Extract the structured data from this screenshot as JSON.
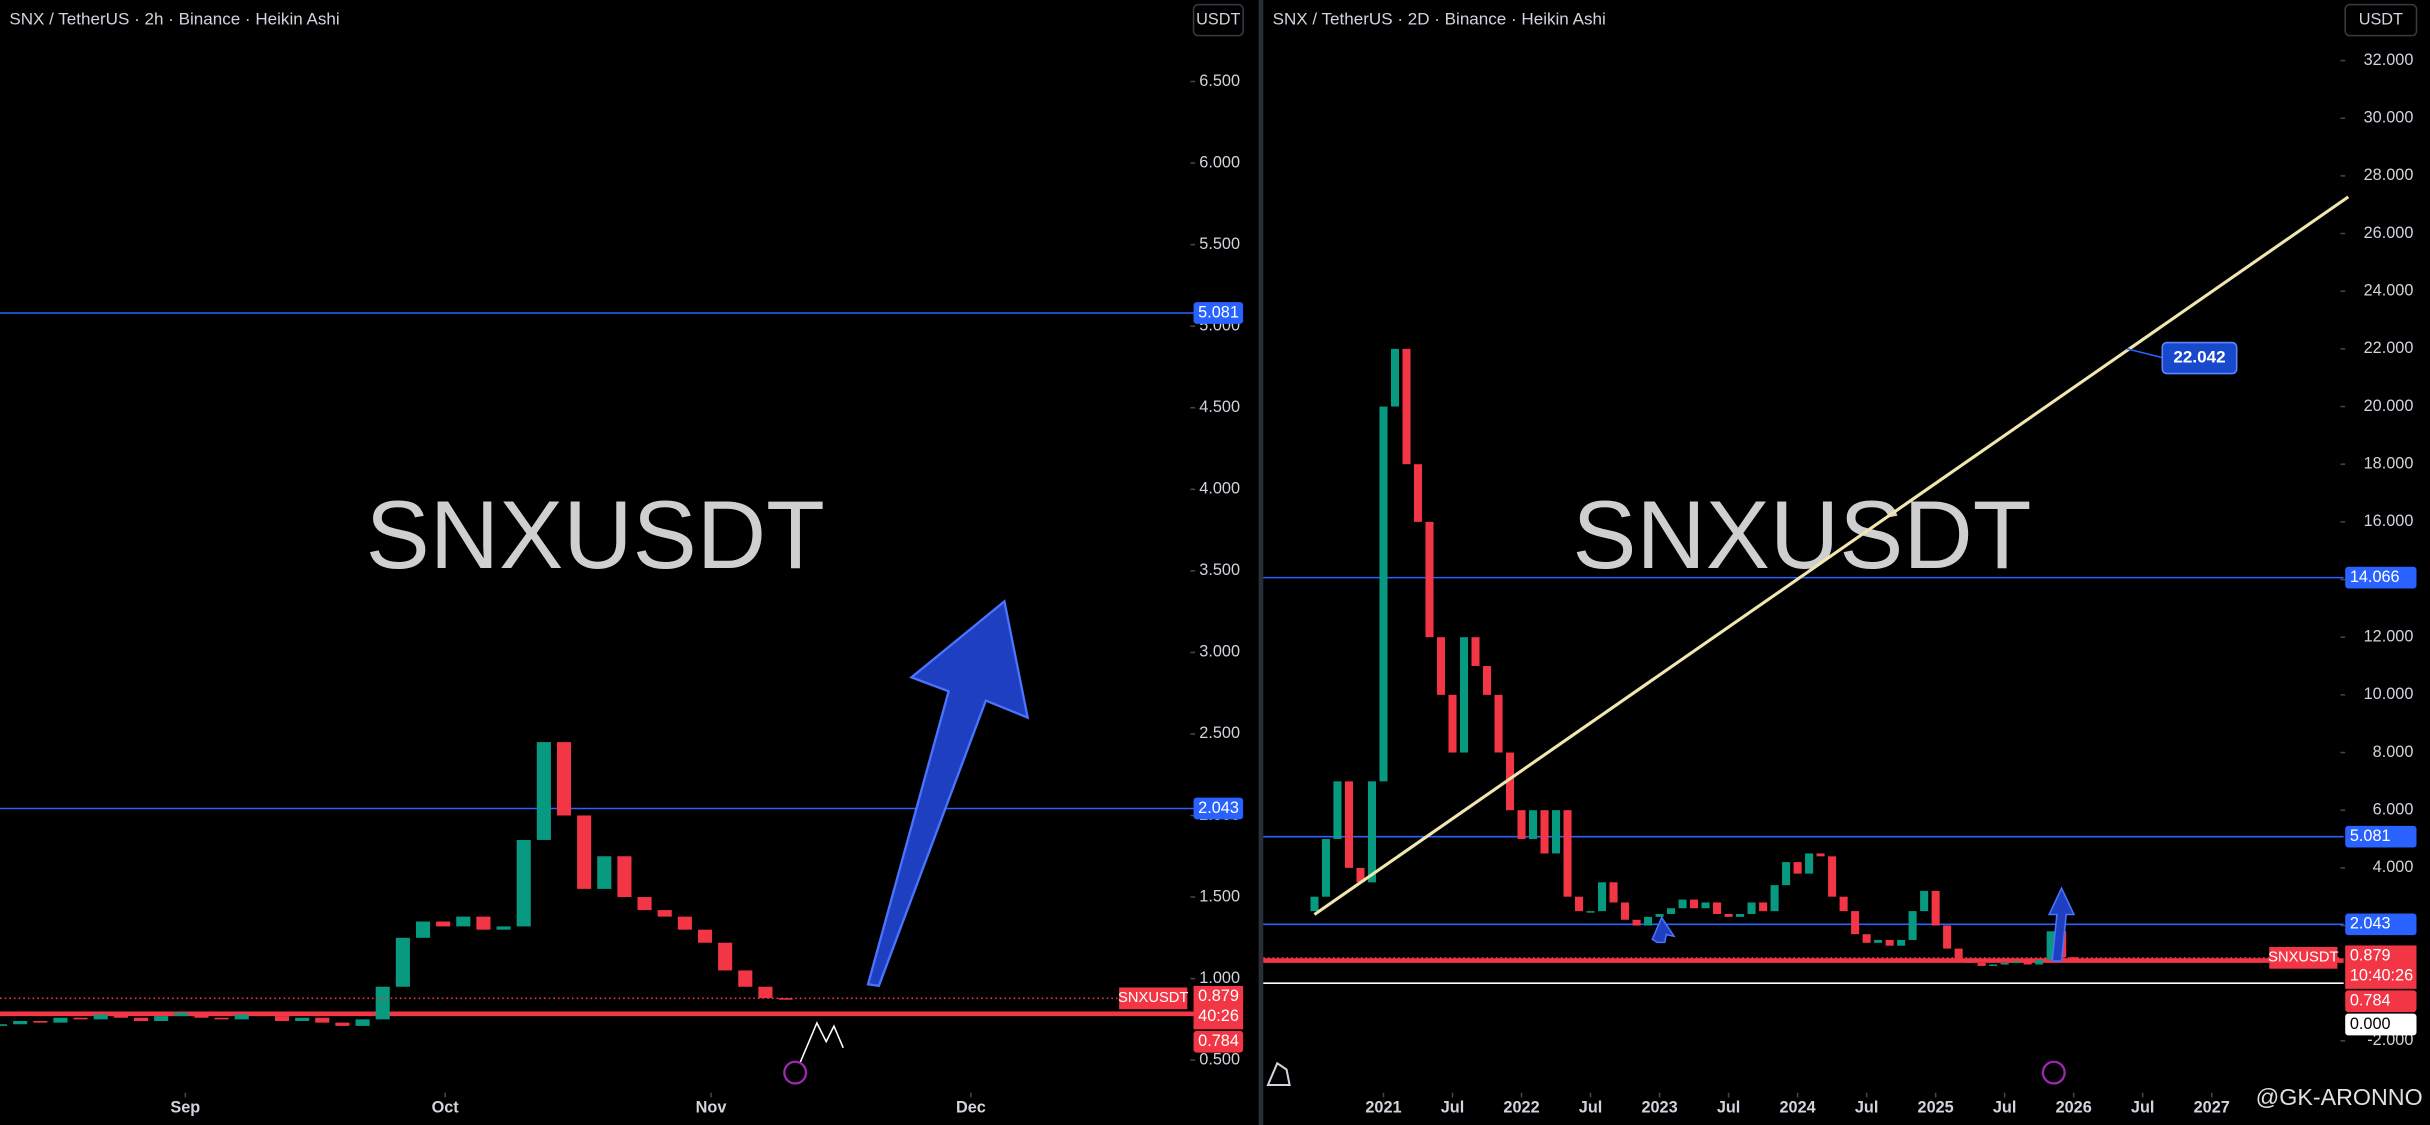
{
  "chart_data": [
    {
      "type": "candlestick",
      "title": "SNX / TetherUS · 2h · Binance · Heikin Ashi",
      "currency": "USDT",
      "watermark": "SNXUSDT",
      "colors": {
        "up": "#089981",
        "down": "#f23645"
      },
      "open": [
        0.71,
        0.72,
        0.74,
        0.73,
        0.76,
        0.75,
        0.78,
        0.76,
        0.74,
        0.77,
        0.79,
        0.76,
        0.75,
        0.78,
        0.77,
        0.74,
        0.76,
        0.73,
        0.71,
        0.75,
        0.95,
        1.25,
        1.35,
        1.32,
        1.38,
        1.3,
        1.32,
        1.85,
        2.45,
        2.0,
        1.55,
        1.75,
        1.5,
        1.42,
        1.38,
        1.3,
        1.22,
        1.05,
        0.95,
        0.88
      ],
      "close": [
        0.72,
        0.74,
        0.73,
        0.76,
        0.75,
        0.78,
        0.76,
        0.74,
        0.77,
        0.79,
        0.76,
        0.75,
        0.78,
        0.77,
        0.74,
        0.76,
        0.73,
        0.71,
        0.75,
        0.95,
        1.25,
        1.35,
        1.32,
        1.38,
        1.3,
        1.32,
        1.85,
        2.45,
        2.0,
        1.55,
        1.75,
        1.5,
        1.42,
        1.38,
        1.3,
        1.22,
        1.05,
        0.95,
        0.88,
        0.879
      ],
      "xlim": [
        0,
        59.1
      ],
      "xticks": [
        {
          "value": 9.2,
          "label": "Sep"
        },
        {
          "value": 22.1,
          "label": "Oct"
        },
        {
          "value": 35.3,
          "label": "Nov"
        },
        {
          "value": 48.2,
          "label": "Dec"
        }
      ],
      "ylim": [
        0.3,
        7.0
      ],
      "yticks": [
        {
          "value": 0.5,
          "label": "0.500"
        },
        {
          "value": 1,
          "label": "1.000"
        },
        {
          "value": 1.5,
          "label": "1.500"
        },
        {
          "value": 2,
          "label": "2.000"
        },
        {
          "value": 2.5,
          "label": "2.500"
        },
        {
          "value": 3,
          "label": "3.000"
        },
        {
          "value": 3.5,
          "label": "3.500"
        },
        {
          "value": 4,
          "label": "4.000"
        },
        {
          "value": 4.5,
          "label": "4.500"
        },
        {
          "value": 5,
          "label": "5.000"
        },
        {
          "value": 5.5,
          "label": "5.500"
        },
        {
          "value": 6,
          "label": "6.000"
        },
        {
          "value": 6.5,
          "label": "6.500"
        }
      ],
      "levels": [
        {
          "value": 5.081,
          "color": "#2962ff"
        },
        {
          "value": 2.043,
          "color": "#2962ff"
        },
        {
          "value": 0.784,
          "color": "#f23645"
        }
      ],
      "last": {
        "symbol": "SNXUSDT",
        "value": 0.879,
        "countdown": "40:26"
      }
    },
    {
      "type": "candlestick",
      "title": "SNX / TetherUS · 2D · Binance · Heikin Ashi",
      "currency": "USDT",
      "watermark": "SNXUSDT",
      "annotation": "22.042",
      "credit": "@GK-ARONNO",
      "colors": {
        "up": "#089981",
        "down": "#f23645"
      },
      "open": [
        2.5,
        3,
        5,
        7,
        4,
        3.5,
        7,
        20,
        22,
        18,
        16,
        12,
        10,
        8,
        12,
        11,
        10,
        8,
        6,
        5,
        6,
        4.5,
        6,
        3,
        2.5,
        2.5,
        3.5,
        2.8,
        2.2,
        2.0,
        2.3,
        2.4,
        2.6,
        2.9,
        2.6,
        2.8,
        2.4,
        2.3,
        2.4,
        2.8,
        2.5,
        3.4,
        4.2,
        3.8,
        4.5,
        4.4,
        3.0,
        2.5,
        1.7,
        1.4,
        1.5,
        1.3,
        1.5,
        2.5,
        3.2,
        2.0,
        1.2,
        0.8,
        0.7,
        0.6,
        0.65,
        0.7,
        0.75,
        0.65,
        0.8,
        1.8,
        0.9
      ],
      "close": [
        3,
        5,
        7,
        4,
        3.5,
        7,
        20,
        22,
        18,
        16,
        12,
        10,
        8,
        12,
        11,
        10,
        8,
        6,
        5,
        6,
        4.5,
        6,
        3,
        2.5,
        2.5,
        3.5,
        2.8,
        2.2,
        2.0,
        2.3,
        2.4,
        2.6,
        2.9,
        2.6,
        2.8,
        2.4,
        2.3,
        2.4,
        2.8,
        2.5,
        3.4,
        4.2,
        3.8,
        4.5,
        4.4,
        3.0,
        2.5,
        1.7,
        1.4,
        1.5,
        1.3,
        1.5,
        2.5,
        3.2,
        2.0,
        1.2,
        0.8,
        0.7,
        0.6,
        0.65,
        0.7,
        0.75,
        0.65,
        0.8,
        1.8,
        0.9,
        0.879
      ],
      "xlim": [
        -4.45,
        89.2
      ],
      "xticks": [
        {
          "value": 6,
          "label": "2021"
        },
        {
          "value": 12,
          "label": "Jul"
        },
        {
          "value": 18,
          "label": "2022"
        },
        {
          "value": 24,
          "label": "Jul"
        },
        {
          "value": 30,
          "label": "2023"
        },
        {
          "value": 36,
          "label": "Jul"
        },
        {
          "value": 42,
          "label": "2024"
        },
        {
          "value": 48,
          "label": "Jul"
        },
        {
          "value": 54,
          "label": "2025"
        },
        {
          "value": 60,
          "label": "Jul"
        },
        {
          "value": 66,
          "label": "2026"
        },
        {
          "value": 72,
          "label": "Jul"
        },
        {
          "value": 78,
          "label": "2027"
        }
      ],
      "ylim": [
        -3.8,
        34.1
      ],
      "yticks": [
        {
          "value": -2,
          "label": "-2.000"
        },
        {
          "value": 2,
          "label": "2.000"
        },
        {
          "value": 4,
          "label": "4.000"
        },
        {
          "value": 6,
          "label": "6.000"
        },
        {
          "value": 8,
          "label": "8.000"
        },
        {
          "value": 10,
          "label": "10.000"
        },
        {
          "value": 12,
          "label": "12.000"
        },
        {
          "value": 14,
          "label": "14.000"
        },
        {
          "value": 16,
          "label": "16.000"
        },
        {
          "value": 18,
          "label": "18.000"
        },
        {
          "value": 20,
          "label": "20.000"
        },
        {
          "value": 22,
          "label": "22.000"
        },
        {
          "value": 24,
          "label": "24.000"
        },
        {
          "value": 26,
          "label": "26.000"
        },
        {
          "value": 28,
          "label": "28.000"
        },
        {
          "value": 30,
          "label": "30.000"
        },
        {
          "value": 32,
          "label": "32.000"
        }
      ],
      "levels": [
        {
          "value": 14.066,
          "color": "#2962ff"
        },
        {
          "value": 5.081,
          "color": "#2962ff"
        },
        {
          "value": 2.043,
          "color": "#2962ff"
        },
        {
          "value": 0.784,
          "color": "#f23645"
        },
        {
          "value": 0,
          "label": "0.000",
          "color": "#ffffff"
        }
      ],
      "last": {
        "symbol": "SNXUSDT",
        "value": 0.879,
        "countdown": "10:40:26"
      }
    }
  ]
}
